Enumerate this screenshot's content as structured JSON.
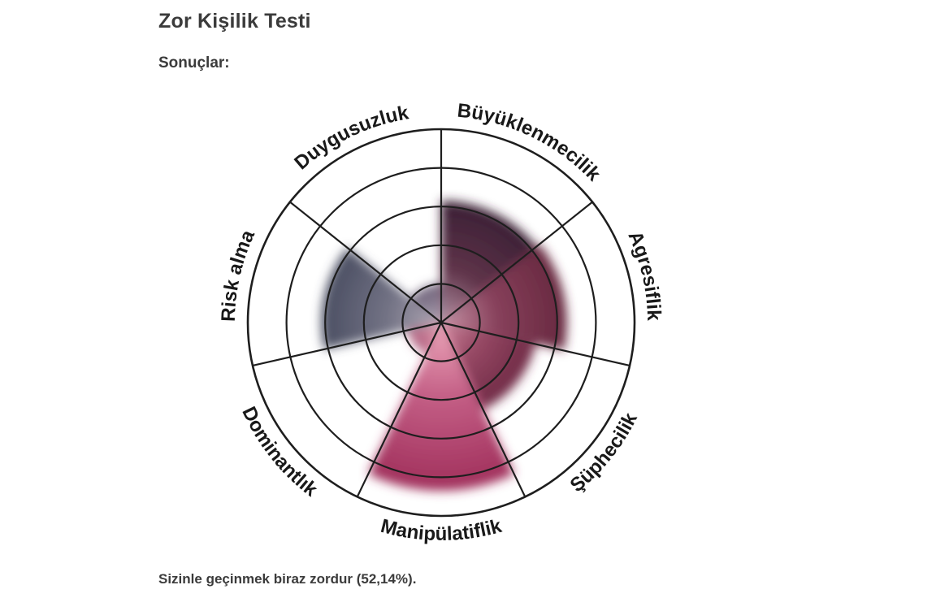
{
  "page": {
    "title": "Zor Kişilik Testi",
    "results_label": "Sonuçlar:",
    "result_text": "Sizinle geçinmek biraz zordur (52,14%)."
  },
  "chart_data": {
    "type": "polar_area",
    "categories": [
      "Büyüklenmecilik",
      "Agresiflik",
      "Şüphecilik",
      "Manipülatiflik",
      "Dominantlık",
      "Risk alma",
      "Duygusuzluk"
    ],
    "values": [
      63,
      65,
      50,
      87,
      18,
      62,
      20
    ],
    "unit": "percent",
    "value_range": [
      0,
      100
    ],
    "overall_score": "52,14%",
    "rings_percent": [
      20,
      40,
      60,
      80,
      100
    ],
    "start_angle_deg": 0,
    "grid": true,
    "legend_position": "labels-around-circle",
    "styles": {
      "grid_color": "#1e1e1e",
      "label_color": "#191919",
      "sector_gradients": [
        {
          "name": "Büyüklenmecilik",
          "inner": "#b392a4",
          "mid": "#5f3349",
          "outer": "#3a2035"
        },
        {
          "name": "Agresiflik",
          "inner": "#c795a7",
          "mid": "#87405b",
          "outer": "#67283f"
        },
        {
          "name": "Şüphecilik",
          "inner": "#cf879d",
          "mid": "#964864",
          "outer": "#6f2a45"
        },
        {
          "name": "Manipülatiflik",
          "inner": "#eda8bb",
          "mid": "#c35e85",
          "outer": "#a02f5b"
        },
        {
          "name": "Dominantlık",
          "inner": "#e3aebc",
          "mid": "#c87e96",
          "outer": "#b06181"
        },
        {
          "name": "Risk alma",
          "inner": "#b2a9b6",
          "mid": "#737385",
          "outer": "#4a4e62"
        },
        {
          "name": "Duygusuzluk",
          "inner": "#b3a9b8",
          "mid": "#8e8296",
          "outer": "#6e6279"
        }
      ]
    }
  }
}
